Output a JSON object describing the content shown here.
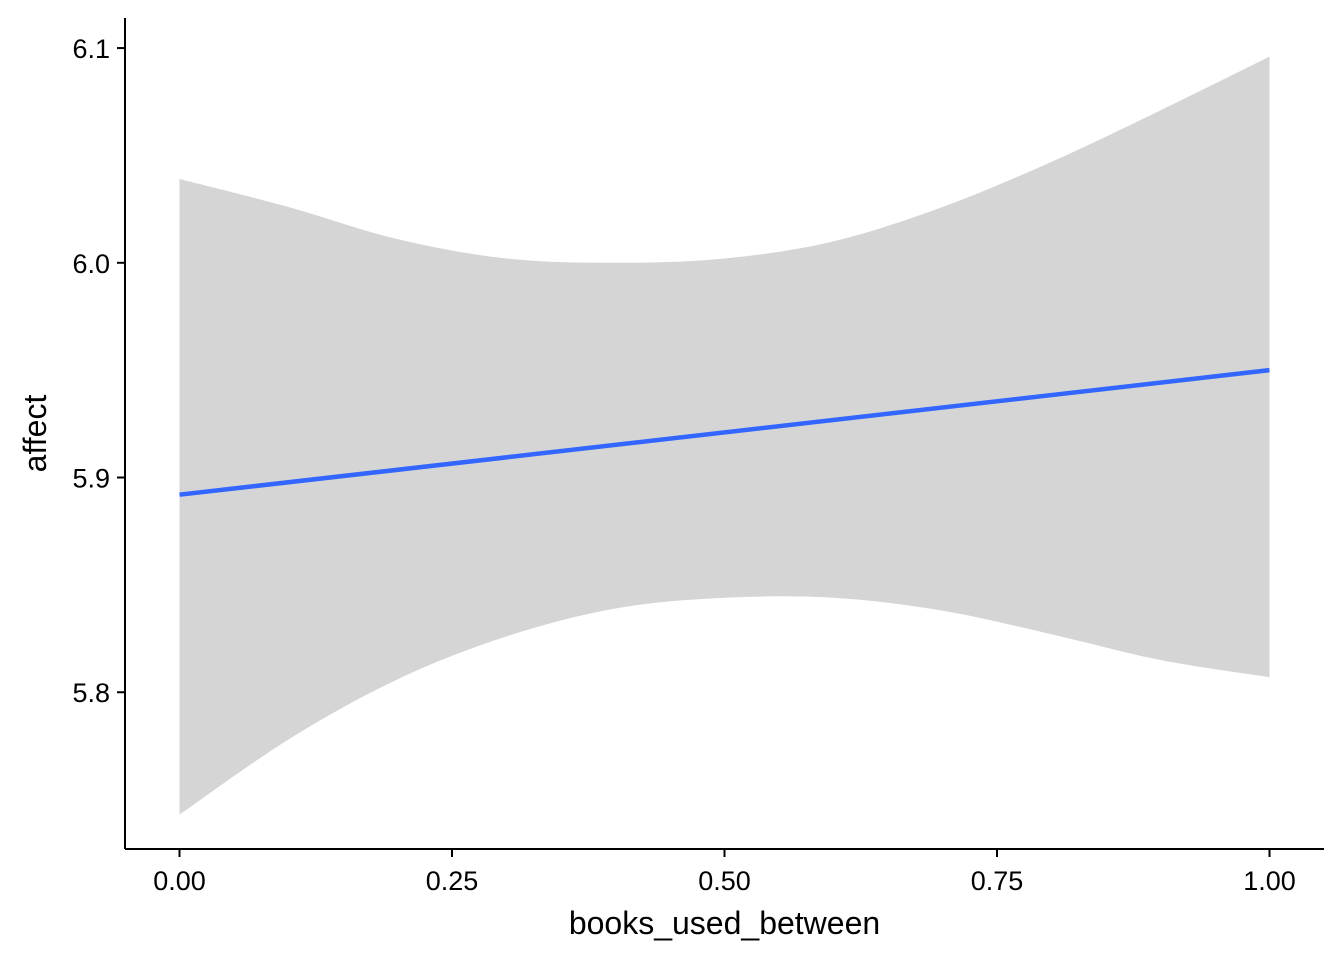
{
  "chart_data": {
    "type": "line",
    "title": "",
    "xlabel": "books_used_between",
    "ylabel": "affect",
    "xlim": [
      -0.05,
      1.05
    ],
    "ylim": [
      5.727,
      6.114
    ],
    "x_ticks": [
      0.0,
      0.25,
      0.5,
      0.75,
      1.0
    ],
    "x_tick_labels": [
      "0.00",
      "0.25",
      "0.50",
      "0.75",
      "1.00"
    ],
    "y_ticks": [
      5.8,
      5.9,
      6.0,
      6.1
    ],
    "y_tick_labels": [
      "5.8",
      "5.9",
      "6.0",
      "6.1"
    ],
    "grid": false,
    "legend": "none",
    "series": [
      {
        "x": [
          0.0,
          1.0
        ],
        "y": [
          5.892,
          5.95
        ]
      }
    ],
    "ribbon": {
      "x": [
        0.0,
        0.1,
        0.2,
        0.3,
        0.4,
        0.5,
        0.6,
        0.7,
        0.8,
        0.9,
        1.0
      ],
      "upper": [
        6.039,
        6.026,
        6.011,
        6.002,
        6.0,
        6.002,
        6.01,
        6.026,
        6.047,
        6.071,
        6.096
      ],
      "lower": [
        5.743,
        5.778,
        5.806,
        5.826,
        5.839,
        5.844,
        5.844,
        5.838,
        5.827,
        5.815,
        5.807
      ]
    },
    "colors": {
      "line": "#3366FF",
      "ribbon": "#D5D5D5",
      "axis": "#000000"
    }
  }
}
